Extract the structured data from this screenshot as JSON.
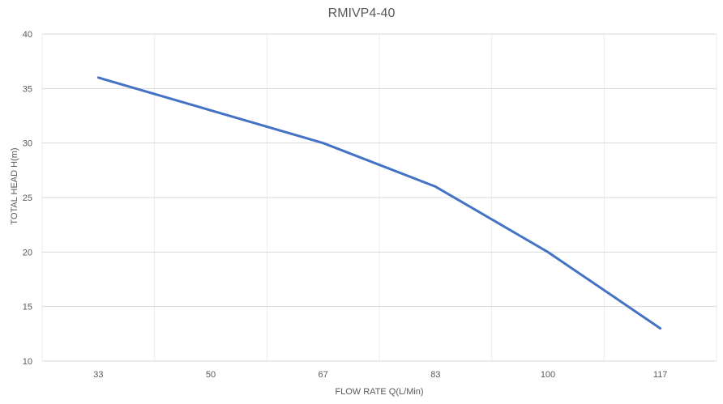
{
  "chart_data": {
    "type": "line",
    "title": "RMIVP4-40",
    "xlabel": "FLOW RATE Q(L/Min)",
    "ylabel": "TOTAL HEAD H(m)",
    "categories": [
      "33",
      "50",
      "67",
      "83",
      "100",
      "117"
    ],
    "series": [
      {
        "values": [
          36,
          33,
          30,
          26,
          20,
          13
        ],
        "color": "#4472c4"
      }
    ],
    "ylim": [
      10,
      40
    ],
    "yticks": [
      "10",
      "15",
      "20",
      "25",
      "30",
      "35",
      "40"
    ],
    "grid": true,
    "legend": "none"
  }
}
